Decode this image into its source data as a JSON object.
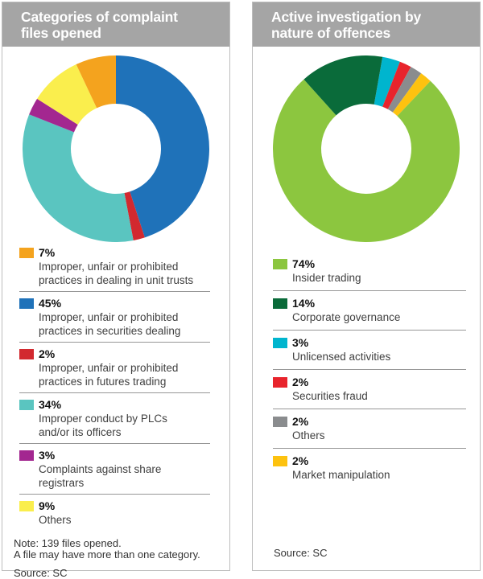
{
  "chart_data": [
    {
      "type": "pie",
      "variant": "donut",
      "title": "Categories of complaint files opened",
      "rotation_deg": 0,
      "inner_radius_ratio": 0.48,
      "legend_position": "bottom",
      "slices": [
        {
          "label": "Improper, unfair or prohibited practices in securities dealing",
          "value": 45,
          "color": "#1f72b9"
        },
        {
          "label": "Improper, unfair or prohibited practices in futures trading",
          "value": 2,
          "color": "#d2292f"
        },
        {
          "label": "Improper conduct by PLCs and/or its officers",
          "value": 34,
          "color": "#5ac5c0"
        },
        {
          "label": "Complaints against share registrars",
          "value": 3,
          "color": "#a32790"
        },
        {
          "label": "Others",
          "value": 9,
          "color": "#faee4d"
        },
        {
          "label": "Improper, unfair or prohibited practices in dealing in unit trusts",
          "value": 7,
          "color": "#f4a31e"
        }
      ],
      "note": "Note: 139 files opened. A file may have more than one category.",
      "source": "Source: SC"
    },
    {
      "type": "pie",
      "variant": "donut",
      "title": "Active investigation by nature of offences",
      "rotation_deg": 10,
      "inner_radius_ratio": 0.48,
      "legend_position": "bottom",
      "slices": [
        {
          "label": "Unlicensed activities",
          "value": 3,
          "color": "#00b5ce"
        },
        {
          "label": "Securities fraud",
          "value": 2,
          "color": "#e8242c"
        },
        {
          "label": "Others",
          "value": 2,
          "color": "#8a8c8e"
        },
        {
          "label": "Market manipulation",
          "value": 2,
          "color": "#fdc20f"
        },
        {
          "label": "Insider trading",
          "value": 74,
          "color": "#8cc63f"
        },
        {
          "label": "Corporate governance",
          "value": 14,
          "color": "#0a6b3a"
        }
      ],
      "source": "Source: SC"
    }
  ],
  "panels": [
    {
      "title_lines": [
        "Categories of complaint",
        "files opened"
      ],
      "legend": [
        {
          "pct": "7%",
          "desc": [
            "Improper, unfair or prohibited",
            "practices in dealing in unit trusts"
          ],
          "color": "#f4a31e"
        },
        {
          "pct": "45%",
          "desc": [
            "Improper, unfair or prohibited",
            "practices in securities dealing"
          ],
          "color": "#1f72b9"
        },
        {
          "pct": "2%",
          "desc": [
            "Improper, unfair or prohibited",
            "practices in futures trading"
          ],
          "color": "#d2292f"
        },
        {
          "pct": "34%",
          "desc": [
            "Improper conduct by PLCs",
            "and/or its officers"
          ],
          "color": "#5ac5c0"
        },
        {
          "pct": "3%",
          "desc": [
            "Complaints against share",
            "registrars"
          ],
          "color": "#a32790"
        },
        {
          "pct": "9%",
          "desc": [
            "Others"
          ],
          "color": "#faee4d"
        }
      ],
      "note_lines": [
        "Note: 139 files opened.",
        "A file may have more than one category."
      ],
      "source": "Source: SC"
    },
    {
      "title_lines": [
        "Active investigation by",
        "nature of offences"
      ],
      "legend": [
        {
          "pct": "74%",
          "desc": [
            "Insider trading"
          ],
          "color": "#8cc63f"
        },
        {
          "pct": "14%",
          "desc": [
            "Corporate governance"
          ],
          "color": "#0a6b3a"
        },
        {
          "pct": "3%",
          "desc": [
            "Unlicensed activities"
          ],
          "color": "#00b5ce"
        },
        {
          "pct": "2%",
          "desc": [
            "Securities fraud"
          ],
          "color": "#e8242c"
        },
        {
          "pct": "2%",
          "desc": [
            "Others"
          ],
          "color": "#8a8c8e"
        },
        {
          "pct": "2%",
          "desc": [
            "Market manipulation"
          ],
          "color": "#fdc20f"
        }
      ],
      "source": "Source: SC"
    }
  ]
}
